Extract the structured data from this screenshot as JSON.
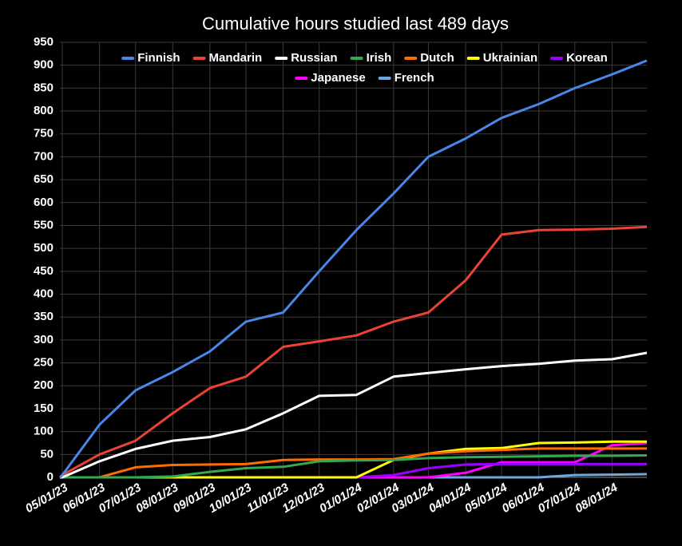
{
  "chart_data": {
    "type": "line",
    "title": "Cumulative hours studied last 489 days",
    "x": [
      "04/29/23",
      "05/01/23",
      "06/01/23",
      "07/01/23",
      "08/01/23",
      "09/01/23",
      "10/01/23",
      "11/01/23",
      "12/01/23",
      "01/01/24",
      "02/01/24",
      "03/01/24",
      "04/01/24",
      "05/01/24",
      "06/01/24",
      "07/01/24",
      "08/01/24",
      "08/30/24"
    ],
    "xlim": [
      "04/29/23",
      "08/30/24"
    ],
    "xticks": [
      "05/01/23",
      "06/01/23",
      "07/01/23",
      "08/01/23",
      "09/01/23",
      "10/01/23",
      "11/01/23",
      "12/01/23",
      "01/01/24",
      "02/01/24",
      "03/01/24",
      "04/01/24",
      "05/01/24",
      "06/01/24",
      "07/01/24",
      "08/01/24"
    ],
    "ylim": [
      0,
      950
    ],
    "yticks": [
      0,
      50,
      100,
      150,
      200,
      250,
      300,
      350,
      400,
      450,
      500,
      550,
      600,
      650,
      700,
      750,
      800,
      850,
      900,
      950
    ],
    "grid": true,
    "series": [
      {
        "name": "Finnish",
        "color": "#4a86e8",
        "values": [
          0,
          5,
          115,
          190,
          230,
          275,
          340,
          360,
          450,
          540,
          620,
          700,
          740,
          785,
          815,
          850,
          880,
          910
        ]
      },
      {
        "name": "Mandarin",
        "color": "#ea4335",
        "values": [
          0,
          5,
          50,
          80,
          140,
          195,
          220,
          285,
          297,
          310,
          340,
          360,
          430,
          530,
          540,
          541,
          543,
          547
        ]
      },
      {
        "name": "Russian",
        "color": "#ffffff",
        "values": [
          0,
          0,
          35,
          62,
          80,
          88,
          105,
          140,
          178,
          180,
          220,
          228,
          236,
          243,
          248,
          255,
          258,
          272
        ]
      },
      {
        "name": "Irish",
        "color": "#34a853",
        "values": [
          0,
          0,
          0,
          0,
          2,
          12,
          20,
          23,
          35,
          37,
          38,
          42,
          44,
          45,
          46,
          47,
          47,
          48
        ]
      },
      {
        "name": "Dutch",
        "color": "#ff6d01",
        "values": [
          0,
          0,
          0,
          22,
          27,
          28,
          29,
          38,
          39,
          39,
          40,
          52,
          57,
          60,
          63,
          63,
          63,
          63
        ]
      },
      {
        "name": "Ukrainian",
        "color": "#ffff00",
        "values": [
          0,
          0,
          0,
          0,
          0,
          0,
          0,
          0,
          0,
          0,
          38,
          52,
          62,
          64,
          75,
          76,
          78,
          78
        ]
      },
      {
        "name": "Korean",
        "color": "#9900ff",
        "values": [
          0,
          0,
          0,
          0,
          0,
          0,
          0,
          0,
          0,
          0,
          5,
          20,
          28,
          29,
          29,
          29,
          29,
          29
        ]
      },
      {
        "name": "Japanese",
        "color": "#ff00ff",
        "values": [
          0,
          0,
          0,
          0,
          0,
          0,
          0,
          0,
          0,
          0,
          0,
          0,
          10,
          33,
          33,
          33,
          70,
          75
        ]
      },
      {
        "name": "French",
        "color": "#6fa8dc",
        "values": [
          0,
          0,
          0,
          0,
          0,
          0,
          0,
          0,
          0,
          0,
          0,
          0,
          0,
          0,
          0,
          5,
          6,
          7
        ]
      }
    ]
  }
}
